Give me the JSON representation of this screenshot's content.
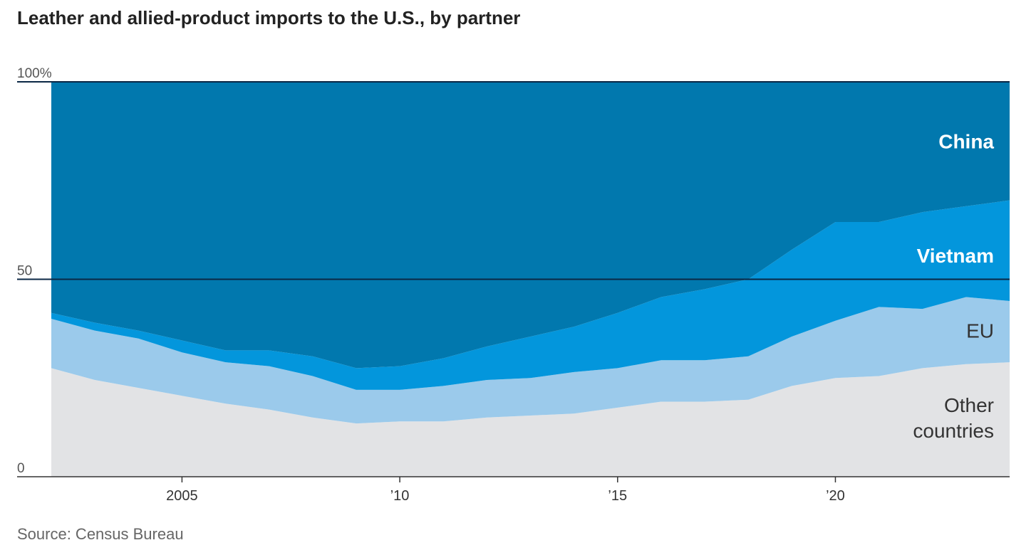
{
  "chart_data": {
    "type": "area",
    "stacked": true,
    "percent": true,
    "title": "Leather and allied-product imports to the U.S., by partner",
    "source": "Source: Census Bureau",
    "x": [
      2002,
      2003,
      2004,
      2005,
      2006,
      2007,
      2008,
      2009,
      2010,
      2011,
      2012,
      2013,
      2014,
      2015,
      2016,
      2017,
      2018,
      2019,
      2020,
      2021,
      2022,
      2023,
      2024
    ],
    "series": [
      {
        "name": "Other countries",
        "color": "#e2e3e5",
        "values": [
          27.5,
          24.5,
          22.5,
          20.5,
          18.5,
          17.0,
          15.0,
          13.5,
          14.0,
          14.0,
          15.0,
          15.5,
          16.0,
          17.5,
          19.0,
          19.0,
          19.5,
          23.0,
          25.0,
          25.5,
          27.5,
          28.5,
          29.0
        ]
      },
      {
        "name": "EU",
        "color": "#9bcaeb",
        "values": [
          12.5,
          12.5,
          12.5,
          11.0,
          10.5,
          11.0,
          10.5,
          8.5,
          8.0,
          9.0,
          9.5,
          9.5,
          10.5,
          10.0,
          10.5,
          10.5,
          11.0,
          12.5,
          14.5,
          17.5,
          15.0,
          17.0,
          15.5
        ]
      },
      {
        "name": "Vietnam",
        "color": "#0396dc",
        "values": [
          1.5,
          2.0,
          2.0,
          3.0,
          3.0,
          4.0,
          5.0,
          5.5,
          6.0,
          7.0,
          8.5,
          10.5,
          11.5,
          14.0,
          16.0,
          18.0,
          19.5,
          22.0,
          25.0,
          21.5,
          24.5,
          23.0,
          25.5
        ]
      },
      {
        "name": "China",
        "color": "#0178ae",
        "values": [
          58.5,
          61.0,
          63.0,
          65.5,
          68.0,
          68.0,
          69.5,
          72.5,
          72.0,
          70.0,
          67.0,
          64.5,
          62.0,
          58.5,
          54.5,
          52.5,
          50.0,
          42.5,
          35.5,
          35.5,
          33.0,
          31.5,
          30.0
        ]
      }
    ],
    "yticks": [
      {
        "value": 0,
        "label": "0"
      },
      {
        "value": 50,
        "label": "50"
      },
      {
        "value": 100,
        "label": "100%"
      }
    ],
    "xticks": [
      {
        "value": 2005,
        "label": "2005"
      },
      {
        "value": 2010,
        "label": "’10"
      },
      {
        "value": 2015,
        "label": "’15"
      },
      {
        "value": 2020,
        "label": "’20"
      }
    ],
    "ylim": [
      0,
      100
    ],
    "xlim": [
      2002,
      2024
    ],
    "grid": true,
    "series_labels": [
      {
        "series": "China",
        "lines": [
          "China"
        ],
        "color": "#ffffff",
        "bold": true,
        "y": 85
      },
      {
        "series": "Vietnam",
        "lines": [
          "Vietnam"
        ],
        "color": "#ffffff",
        "bold": true,
        "y": 56
      },
      {
        "series": "EU",
        "lines": [
          "EU"
        ],
        "color": "#333333",
        "bold": false,
        "y": 37
      },
      {
        "series": "Other countries",
        "lines": [
          "Other",
          "countries"
        ],
        "color": "#333333",
        "bold": false,
        "y": 15
      }
    ]
  }
}
